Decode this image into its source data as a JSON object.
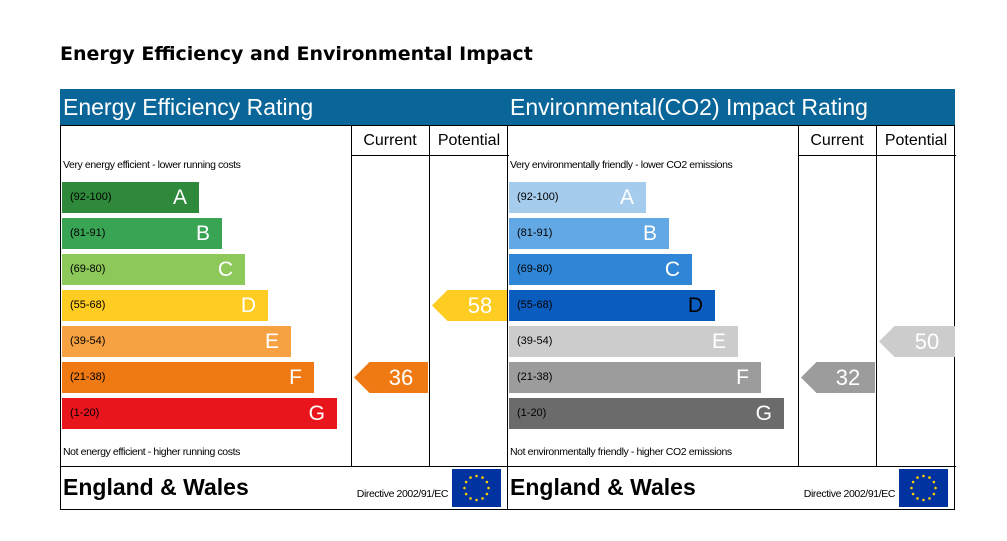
{
  "title": "Energy Efficiency and Environmental Impact",
  "chart_data": [
    {
      "type": "bar",
      "title": "Energy Efficiency Rating",
      "columns": [
        "Current",
        "Potential"
      ],
      "top_note": "Very energy efficient - lower running costs",
      "bottom_note": "Not energy efficient - higher running costs",
      "bands": [
        {
          "range": "(92-100)",
          "letter": "A",
          "color": "#2e8a3a",
          "text_color": "#000000",
          "letter_color": "#ffffff"
        },
        {
          "range": "(81-91)",
          "letter": "B",
          "color": "#3aa455",
          "text_color": "#000000",
          "letter_color": "#ffffff"
        },
        {
          "range": "(69-80)",
          "letter": "C",
          "color": "#8dc85a",
          "text_color": "#000000",
          "letter_color": "#ffffff"
        },
        {
          "range": "(55-68)",
          "letter": "D",
          "color": "#ffcc22",
          "text_color": "#000000",
          "letter_color": "#ffffff"
        },
        {
          "range": "(39-54)",
          "letter": "E",
          "color": "#f7a242",
          "text_color": "#000000",
          "letter_color": "#ffffff"
        },
        {
          "range": "(21-38)",
          "letter": "F",
          "color": "#ef7a14",
          "text_color": "#000000",
          "letter_color": "#ffffff"
        },
        {
          "range": "(1-20)",
          "letter": "G",
          "color": "#e9151c",
          "text_color": "#000000",
          "letter_color": "#ffffff"
        }
      ],
      "current": {
        "value": 36,
        "band": "F",
        "color": "#ef7a14"
      },
      "potential": {
        "value": 58,
        "band": "D",
        "color": "#ffcc22"
      },
      "footer": {
        "region": "England & Wales",
        "directive": "Directive 2002/91/EC"
      }
    },
    {
      "type": "bar",
      "title": "Environmental(CO2) Impact Rating",
      "columns": [
        "Current",
        "Potential"
      ],
      "top_note": "Very environmentally friendly - lower CO2 emissions",
      "bottom_note": "Not environmentally friendly - higher CO2 emissions",
      "bands": [
        {
          "range": "(92-100)",
          "letter": "A",
          "color": "#a5ccec",
          "text_color": "#000000",
          "letter_color": "#ffffff"
        },
        {
          "range": "(81-91)",
          "letter": "B",
          "color": "#62a8e4",
          "text_color": "#000000",
          "letter_color": "#ffffff"
        },
        {
          "range": "(69-80)",
          "letter": "C",
          "color": "#2f86d6",
          "text_color": "#000000",
          "letter_color": "#ffffff"
        },
        {
          "range": "(55-68)",
          "letter": "D",
          "color": "#0a5cbf",
          "text_color": "#000000",
          "letter_color": "#000000"
        },
        {
          "range": "(39-54)",
          "letter": "E",
          "color": "#cccccc",
          "text_color": "#000000",
          "letter_color": "#ffffff"
        },
        {
          "range": "(21-38)",
          "letter": "F",
          "color": "#9c9c9c",
          "text_color": "#000000",
          "letter_color": "#ffffff"
        },
        {
          "range": "(1-20)",
          "letter": "G",
          "color": "#6b6b6b",
          "text_color": "#000000",
          "letter_color": "#ffffff"
        }
      ],
      "current": {
        "value": 32,
        "band": "F",
        "color": "#9c9c9c"
      },
      "potential": {
        "value": 50,
        "band": "E",
        "color": "#cccccc"
      },
      "footer": {
        "region": "England & Wales",
        "directive": "Directive 2002/91/EC"
      }
    }
  ]
}
